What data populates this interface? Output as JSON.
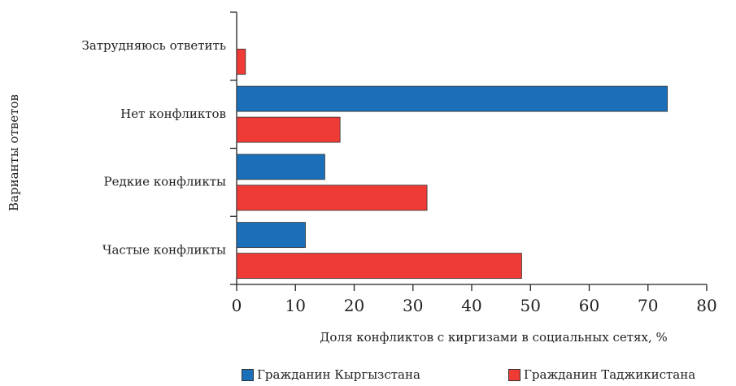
{
  "chart_data": {
    "type": "bar",
    "orientation": "horizontal",
    "categories": [
      "Затрудняюсь ответить",
      "Нет конфликтов",
      "Редкие конфликты",
      "Частые конфликты"
    ],
    "series": [
      {
        "name": "Гражданин Кыргызстана",
        "color": "#1a6fb8",
        "values": [
          0,
          73.3,
          15.0,
          11.7
        ]
      },
      {
        "name": "Гражданин Таджикистана",
        "color": "#ef3b36",
        "values": [
          1.5,
          17.6,
          32.4,
          48.5
        ]
      }
    ],
    "xlabel": "Доля конфликтов с киргизами в социальных сетях, %",
    "ylabel": "Варианты ответов",
    "xlim": [
      0,
      80
    ],
    "xticks": [
      0,
      10,
      20,
      30,
      40,
      50,
      60,
      70,
      80
    ],
    "grid": false,
    "legend_position": "bottom"
  }
}
